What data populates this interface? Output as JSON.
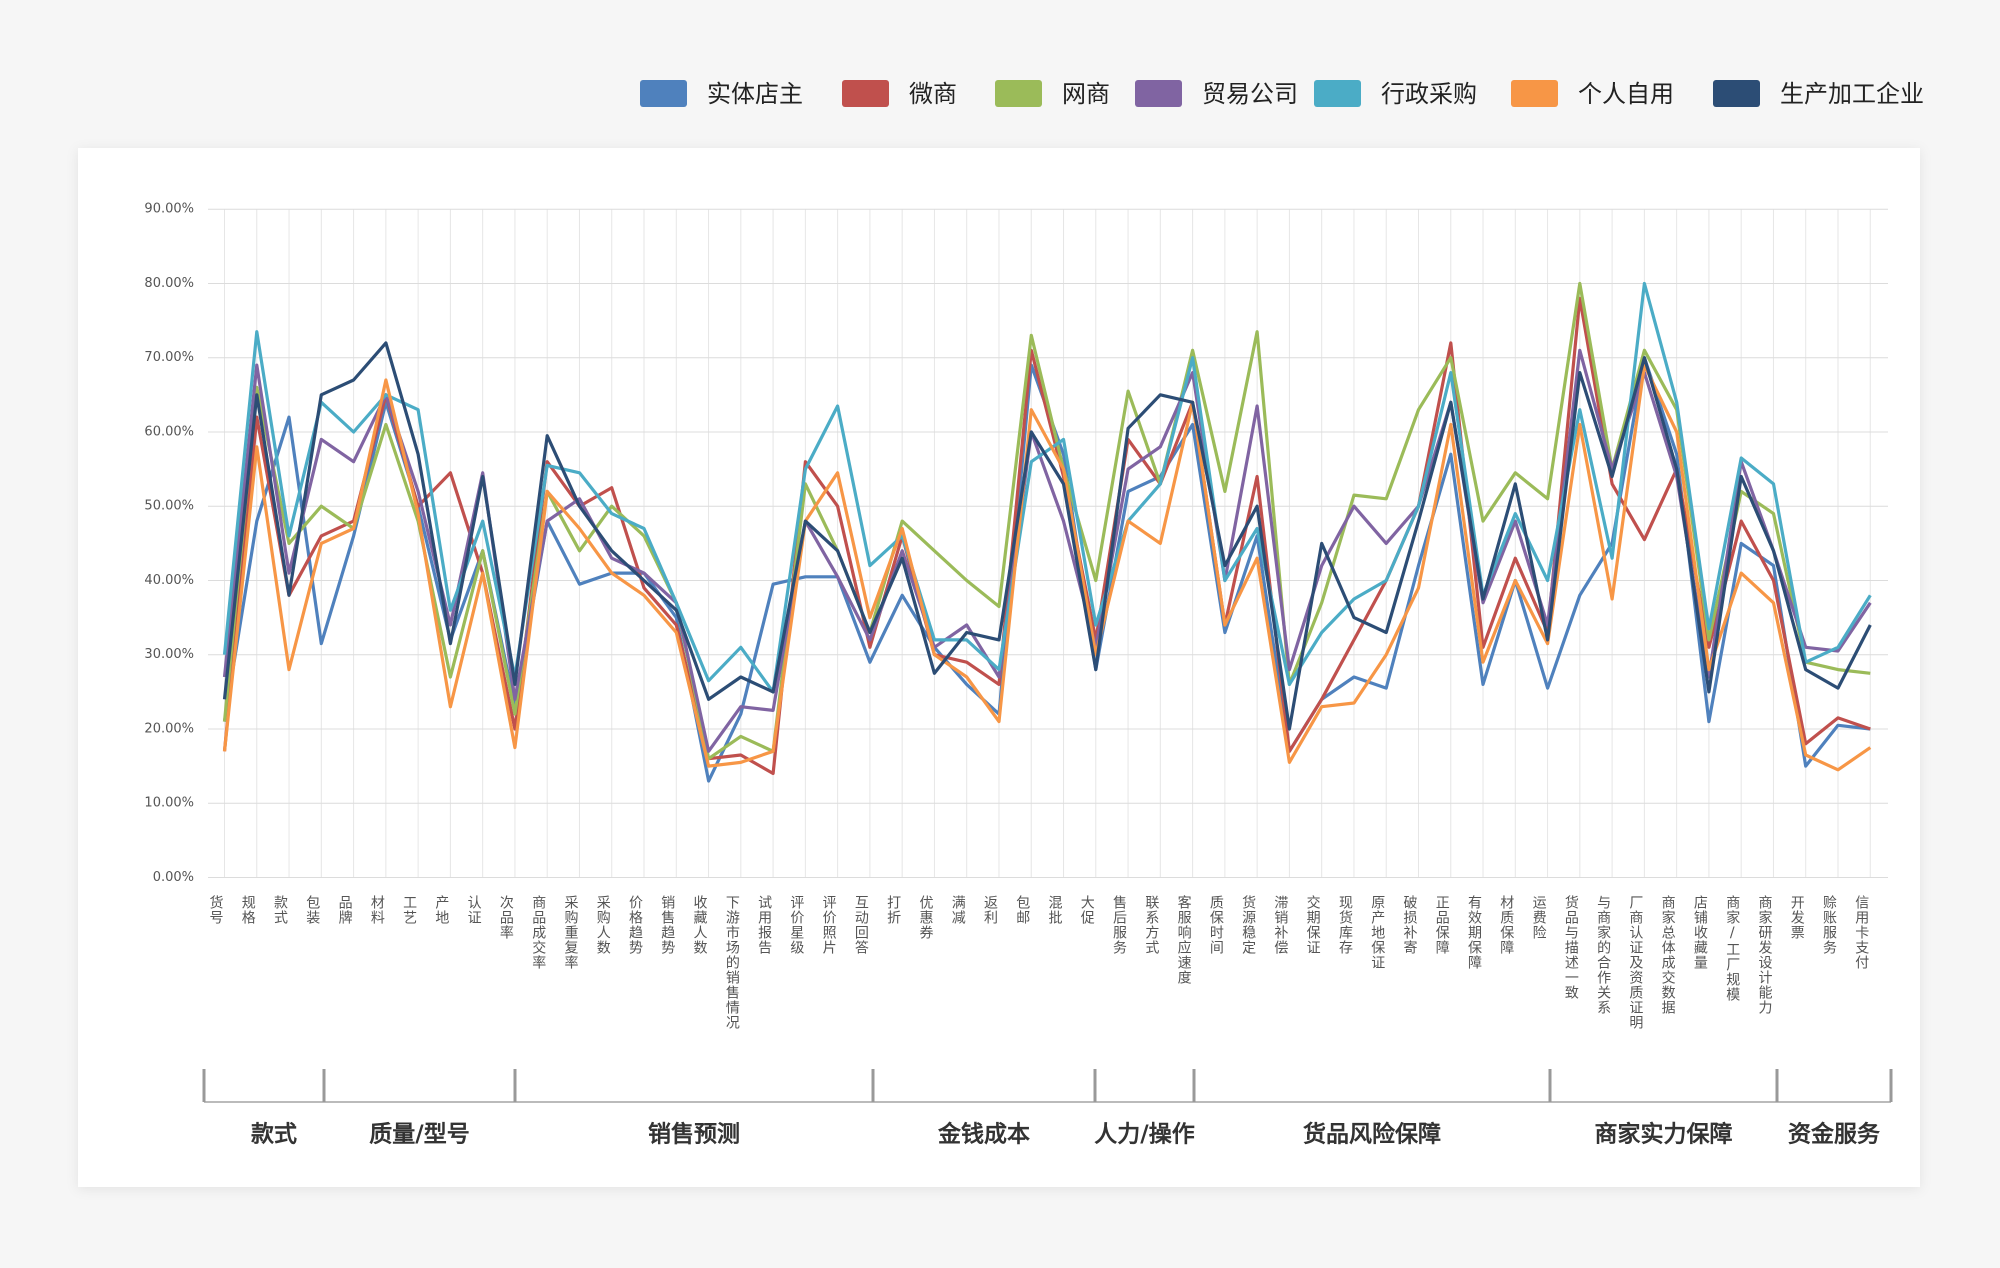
{
  "chart_data": {
    "type": "line",
    "categories": [
      "货号",
      "规格",
      "款式",
      "包装",
      "品牌",
      "材料",
      "工艺",
      "产地",
      "认证",
      "次品率",
      "商品成交率",
      "采购重复率",
      "采购人数",
      "价格趋势",
      "销售趋势",
      "收藏人数",
      "下游市场的销售情况",
      "试用报告",
      "评价星级",
      "评价照片",
      "互动回答",
      "打折",
      "优惠券",
      "满减",
      "返利",
      "包邮",
      "混批",
      "大促",
      "售后服务",
      "联系方式",
      "客服响应速度",
      "质保时间",
      "货源稳定",
      "滞销补偿",
      "交期保证",
      "现货库存",
      "原产地保证",
      "破损补寄",
      "正品保障",
      "有效期保障",
      "材质保障",
      "运费险",
      "货品与描述一致",
      "与商家的合作关系",
      "厂商认证及资质证明",
      "商家总体成交数据",
      "店铺收藏量",
      "商家/工厂规模",
      "商家研发设计能力",
      "开发票",
      "赊账服务",
      "信用卡支付"
    ],
    "category_groups": [
      "款式",
      "质量/型号",
      "销售预测",
      "金钱成本",
      "人力/操作",
      "货品风险保障",
      "商家实力保障",
      "资金服务"
    ],
    "series": [
      {
        "name": "实体店主",
        "color": "#4f81bd",
        "values": [
          21,
          48,
          62,
          31.5,
          46,
          64,
          50,
          32,
          44,
          23,
          48,
          39.5,
          41,
          41,
          35,
          13,
          22,
          39.5,
          40.5,
          40.5,
          29,
          38,
          31,
          26,
          22,
          69,
          57,
          28,
          52,
          54,
          61,
          33,
          46,
          17,
          24,
          27,
          25.5,
          42,
          57,
          26,
          40,
          25.5,
          38,
          45,
          70,
          57,
          21,
          45,
          42,
          15,
          20.5,
          20
        ]
      },
      {
        "name": "微商",
        "color": "#c0504d",
        "values": [
          17,
          62,
          38,
          46,
          48,
          65,
          50,
          54.5,
          41,
          20,
          56,
          50,
          52.5,
          39,
          34,
          16,
          16.5,
          14,
          56,
          50,
          31,
          46,
          30,
          29,
          26,
          71,
          54,
          32,
          59,
          53,
          64,
          34,
          54,
          17,
          24,
          32,
          40,
          50,
          72,
          31,
          43,
          33,
          78,
          53,
          45.5,
          55,
          31,
          48,
          40,
          18,
          21.5,
          20
        ]
      },
      {
        "name": "网商",
        "color": "#9bbb59",
        "values": [
          21,
          66,
          45,
          50,
          47,
          61,
          48,
          27,
          44,
          22,
          52,
          44,
          50,
          46,
          37,
          16,
          19,
          17,
          53,
          44,
          33,
          48,
          44,
          40,
          36.5,
          73,
          55,
          40,
          65.5,
          53,
          71,
          52,
          73.5,
          26,
          37,
          51.5,
          51,
          63,
          70,
          48,
          54.5,
          51,
          80,
          55,
          71,
          63,
          32,
          52,
          49,
          29,
          28,
          27.5
        ]
      },
      {
        "name": "贸易公司",
        "color": "#8064a2",
        "values": [
          27,
          69,
          41,
          59,
          56,
          65,
          52,
          34,
          54.5,
          24,
          48,
          51,
          43,
          41,
          37,
          17,
          23,
          22.5,
          48,
          40.5,
          32,
          44,
          31,
          34,
          27,
          60,
          48,
          31,
          55,
          58,
          68,
          40,
          63.5,
          28,
          42,
          50,
          45,
          50,
          64,
          37,
          48,
          34,
          71,
          55,
          68,
          54,
          27,
          56,
          44,
          31,
          30.5,
          37
        ]
      },
      {
        "name": "行政采购",
        "color": "#4bacc6",
        "values": [
          30,
          73.5,
          46,
          64,
          60,
          65,
          63,
          36,
          48,
          27,
          55.5,
          54.5,
          49,
          47,
          37,
          26.5,
          31,
          25,
          55,
          63.5,
          42,
          46,
          32,
          32,
          28,
          56,
          59,
          34,
          48,
          53,
          70,
          40,
          47,
          26,
          33,
          37.5,
          40,
          50,
          68,
          38,
          49,
          40,
          63,
          43,
          80,
          64,
          33.5,
          56.5,
          53,
          29,
          31,
          38
        ]
      },
      {
        "name": "个人自用",
        "color": "#f79646",
        "values": [
          17,
          58,
          28,
          45,
          47,
          67,
          49,
          23,
          41,
          17.5,
          52,
          47,
          41,
          38,
          33,
          15,
          15.5,
          17,
          48,
          54.5,
          35,
          47,
          30,
          27,
          21,
          63,
          55,
          30,
          48,
          45,
          64,
          34,
          43,
          15.5,
          23,
          23.5,
          30,
          39,
          61,
          29,
          40,
          31.5,
          61,
          37.5,
          69,
          60,
          28,
          41,
          37,
          16.5,
          14.5,
          17.5
        ]
      },
      {
        "name": "生产加工企业",
        "color": "#2c4d75",
        "values": [
          24,
          65,
          38,
          65,
          67,
          72,
          57,
          31.5,
          54,
          26,
          59.5,
          50,
          44,
          40,
          36,
          24,
          27,
          25,
          48,
          44,
          33,
          43,
          27.5,
          33,
          32,
          60,
          53,
          28,
          60.5,
          65,
          64,
          42,
          50,
          20,
          45,
          35,
          33,
          48,
          64,
          37.5,
          53,
          32,
          68,
          54,
          70,
          55,
          25,
          54,
          44,
          28,
          25.5,
          34
        ]
      }
    ],
    "ylim": [
      0,
      90
    ],
    "yticks": [
      {
        "value": 0,
        "label": "0.00%"
      },
      {
        "value": 10,
        "label": "10.00%"
      },
      {
        "value": 20,
        "label": "20.00%"
      },
      {
        "value": 30,
        "label": "30.00%"
      },
      {
        "value": 40,
        "label": "40.00%"
      },
      {
        "value": 50,
        "label": "50.00%"
      },
      {
        "value": 60,
        "label": "60.00%"
      },
      {
        "value": 70,
        "label": "70.00%"
      },
      {
        "value": 80,
        "label": "80.00%"
      },
      {
        "value": 90,
        "label": "90.00%"
      }
    ],
    "grid": true,
    "legend": "top-right"
  }
}
